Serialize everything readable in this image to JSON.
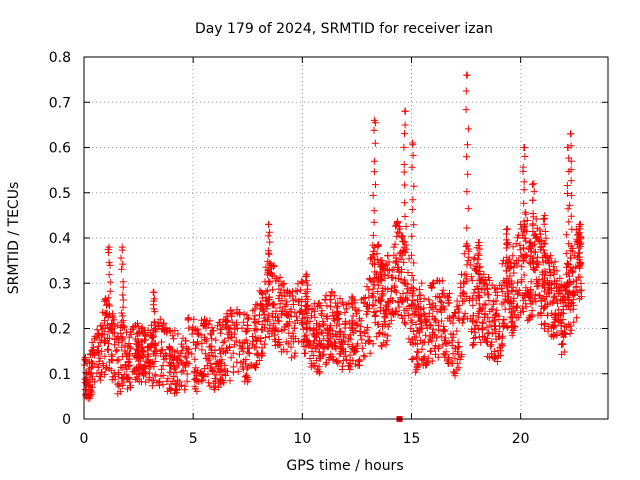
{
  "chart_data": {
    "type": "scatter",
    "title": "Day 179 of 2024, SRMTID for receiver izan",
    "xlabel": "GPS time / hours",
    "ylabel": "SRMTID / TECUs",
    "xlim": [
      0,
      24
    ],
    "ylim": [
      0,
      0.8
    ],
    "x_ticks": [
      0,
      5,
      10,
      15,
      20
    ],
    "x_tick_labels": [
      "0",
      "5",
      "10",
      "15",
      "20"
    ],
    "y_ticks": [
      0,
      0.1,
      0.2,
      0.3,
      0.4,
      0.5,
      0.6,
      0.7,
      0.8
    ],
    "y_tick_labels": [
      "0",
      "0.1",
      "0.2",
      "0.3",
      "0.4",
      "0.5",
      "0.6",
      "0.7",
      "0.8"
    ],
    "grid": true,
    "marker": "plus",
    "series_color": "#ff0000",
    "gap_marker": {
      "x": 14.45,
      "y": 0.0
    },
    "series": [
      {
        "name": "SRMTID",
        "envelope": {
          "x": [
            0.0,
            0.25,
            0.5,
            0.8,
            1.0,
            1.2,
            1.4,
            1.6,
            1.8,
            2.0,
            2.3,
            2.6,
            3.0,
            3.3,
            3.6,
            4.0,
            4.4,
            4.8,
            5.2,
            5.6,
            6.0,
            6.4,
            6.8,
            7.2,
            7.6,
            8.0,
            8.3,
            8.5,
            8.8,
            9.2,
            9.6,
            10.0,
            10.4,
            10.8,
            11.2,
            11.6,
            12.0,
            12.4,
            12.8,
            13.0,
            13.2,
            13.4,
            13.6,
            13.8,
            14.0,
            14.2,
            14.5,
            14.8,
            15.0,
            15.2,
            15.5,
            15.8,
            16.1,
            16.4,
            16.8,
            17.0,
            17.2,
            17.4,
            17.6,
            17.8,
            18.0,
            18.3,
            18.6,
            19.0,
            19.3,
            19.6,
            20.0,
            20.2,
            20.4,
            20.7,
            21.0,
            21.3,
            21.6,
            21.9,
            22.2,
            22.4,
            22.6,
            22.8
          ],
          "base": [
            0.08,
            0.1,
            0.13,
            0.15,
            0.19,
            0.17,
            0.14,
            0.13,
            0.16,
            0.12,
            0.14,
            0.15,
            0.13,
            0.16,
            0.14,
            0.13,
            0.12,
            0.15,
            0.14,
            0.16,
            0.13,
            0.15,
            0.17,
            0.16,
            0.15,
            0.2,
            0.24,
            0.27,
            0.24,
            0.22,
            0.21,
            0.23,
            0.19,
            0.18,
            0.21,
            0.19,
            0.18,
            0.2,
            0.19,
            0.22,
            0.27,
            0.3,
            0.26,
            0.24,
            0.29,
            0.33,
            0.34,
            0.3,
            0.23,
            0.18,
            0.22,
            0.2,
            0.23,
            0.22,
            0.2,
            0.17,
            0.2,
            0.27,
            0.28,
            0.25,
            0.28,
            0.24,
            0.22,
            0.2,
            0.3,
            0.28,
            0.33,
            0.35,
            0.31,
            0.34,
            0.3,
            0.28,
            0.26,
            0.23,
            0.26,
            0.3,
            0.33,
            0.34
          ],
          "spread": [
            0.06,
            0.06,
            0.06,
            0.07,
            0.09,
            0.08,
            0.08,
            0.08,
            0.09,
            0.07,
            0.07,
            0.07,
            0.07,
            0.08,
            0.08,
            0.07,
            0.07,
            0.08,
            0.08,
            0.08,
            0.07,
            0.08,
            0.08,
            0.08,
            0.08,
            0.08,
            0.09,
            0.1,
            0.09,
            0.08,
            0.08,
            0.08,
            0.08,
            0.08,
            0.08,
            0.08,
            0.08,
            0.08,
            0.08,
            0.09,
            0.12,
            0.12,
            0.1,
            0.1,
            0.1,
            0.1,
            0.11,
            0.11,
            0.1,
            0.09,
            0.1,
            0.09,
            0.09,
            0.09,
            0.08,
            0.08,
            0.09,
            0.11,
            0.11,
            0.1,
            0.1,
            0.09,
            0.09,
            0.09,
            0.1,
            0.1,
            0.1,
            0.11,
            0.11,
            0.11,
            0.1,
            0.09,
            0.09,
            0.09,
            0.1,
            0.11,
            0.1,
            0.08
          ]
        },
        "peaks": [
          {
            "x": 1.15,
            "y": 0.38
          },
          {
            "x": 1.75,
            "y": 0.38
          },
          {
            "x": 3.2,
            "y": 0.28
          },
          {
            "x": 8.45,
            "y": 0.43
          },
          {
            "x": 10.2,
            "y": 0.32
          },
          {
            "x": 13.3,
            "y": 0.66
          },
          {
            "x": 13.65,
            "y": 0.35
          },
          {
            "x": 14.7,
            "y": 0.68
          },
          {
            "x": 15.05,
            "y": 0.61
          },
          {
            "x": 17.55,
            "y": 0.76
          },
          {
            "x": 18.1,
            "y": 0.39
          },
          {
            "x": 19.4,
            "y": 0.42
          },
          {
            "x": 20.15,
            "y": 0.6
          },
          {
            "x": 20.6,
            "y": 0.52
          },
          {
            "x": 21.1,
            "y": 0.45
          },
          {
            "x": 22.15,
            "y": 0.6
          },
          {
            "x": 22.3,
            "y": 0.63
          },
          {
            "x": 22.7,
            "y": 0.43
          }
        ]
      }
    ]
  }
}
